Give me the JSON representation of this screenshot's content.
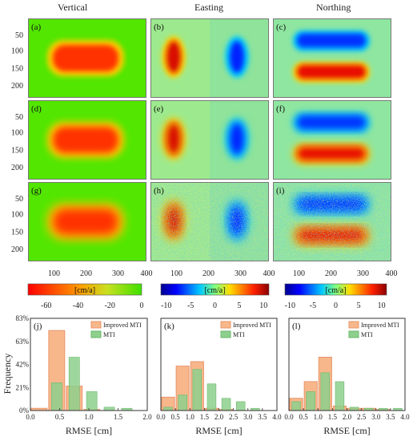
{
  "columns": [
    "Vertical",
    "Easting",
    "Northing"
  ],
  "panel_labels": [
    "(a)",
    "(b)",
    "(c)",
    "(d)",
    "(e)",
    "(f)",
    "(g)",
    "(h)",
    "(i)"
  ],
  "y_ticks": [
    "50",
    "100",
    "150",
    "200"
  ],
  "x_ticks": [
    "100",
    "200",
    "300",
    "400"
  ],
  "colorbars": [
    {
      "unit": "[cm/a]",
      "ticks": [
        "-60",
        "-40",
        "-20",
        "0"
      ]
    },
    {
      "unit": "[cm/a]",
      "ticks": [
        "-10",
        "-5",
        "0",
        "5",
        "10"
      ]
    },
    {
      "unit": "[cm/a]",
      "ticks": [
        "-10",
        "-5",
        "0",
        "5",
        "10"
      ]
    }
  ],
  "colors": {
    "improved_mti": "#f7b78b",
    "mti": "#8dd08d"
  },
  "chart_data": [
    {
      "type": "bar",
      "label": "(j)",
      "x": [
        0.0,
        0.3,
        0.6,
        0.9,
        1.2,
        1.5
      ],
      "series": [
        {
          "name": "Improved MTI",
          "values": [
            2,
            72,
            22,
            1,
            0,
            0
          ]
        },
        {
          "name": "MTI",
          "values": [
            0,
            25,
            48,
            17,
            3,
            2
          ]
        }
      ],
      "xlim": [
        0,
        2.0
      ],
      "xticks": [
        "0.0",
        "0.5",
        "1.0",
        "1.5",
        "2.0"
      ],
      "ylim": [
        0,
        83
      ],
      "yticks": [
        "0%",
        "21%",
        "42%",
        "63%",
        "83%"
      ],
      "xlabel": "RMSE [cm]",
      "ylabel": "Frequency"
    },
    {
      "type": "bar",
      "label": "(k)",
      "x": [
        0.0,
        0.5,
        1.0,
        1.5,
        2.0,
        2.5,
        3.0
      ],
      "series": [
        {
          "name": "Improved MTI",
          "values": [
            12,
            40,
            44,
            2,
            1,
            0,
            0
          ]
        },
        {
          "name": "MTI",
          "values": [
            3,
            14,
            37,
            24,
            11,
            8,
            2
          ]
        }
      ],
      "xlim": [
        0,
        4.0
      ],
      "xticks": [
        "0.0",
        "0.5",
        "1.0",
        "1.5",
        "2.0",
        "2.5",
        "3.0",
        "3.5",
        "4.0"
      ],
      "ylim": [
        0,
        83
      ],
      "xlabel": "RMSE [cm]"
    },
    {
      "type": "bar",
      "label": "(l)",
      "x": [
        0.0,
        0.5,
        1.0,
        1.5,
        2.0,
        2.5,
        3.0,
        3.5
      ],
      "series": [
        {
          "name": "Improved MTI",
          "values": [
            11,
            26,
            48,
            4,
            2,
            2,
            1,
            0
          ]
        },
        {
          "name": "MTI",
          "values": [
            8,
            17,
            34,
            26,
            3,
            2,
            2,
            2
          ]
        }
      ],
      "xlim": [
        0,
        4.0
      ],
      "xticks": [
        "0.0",
        "0.5",
        "1.0",
        "1.5",
        "2.0",
        "2.5",
        "3.0",
        "3.5",
        "4.0"
      ],
      "ylim": [
        0,
        83
      ],
      "xlabel": "RMSE [cm]"
    }
  ]
}
